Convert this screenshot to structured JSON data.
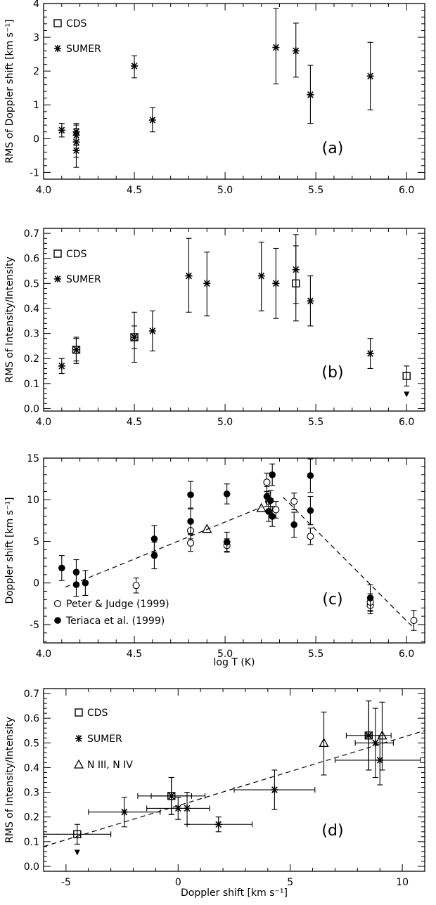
{
  "chart_data": [
    {
      "type": "scatter",
      "panel_label": "(a)",
      "xlabel": "",
      "ylabel": "RMS of Doppler shift [km s⁻¹]",
      "xlim": [
        4.0,
        6.1
      ],
      "ylim": [
        -1.2,
        4.0
      ],
      "xticks": [
        "4.0",
        "4.5",
        "5.0",
        "5.5",
        "6.0"
      ],
      "yticks": [
        "-1",
        "0",
        "1",
        "2",
        "3",
        "4"
      ],
      "legend": [
        "CDS",
        "SUMER"
      ],
      "legend_position": "top-left",
      "series": [
        {
          "name": "SUMER",
          "marker": "asterisk",
          "points": [
            {
              "x": 4.1,
              "y": 0.25,
              "ylo": 0.05,
              "yhi": 0.45
            },
            {
              "x": 4.18,
              "y": 0.2,
              "ylo": -0.05,
              "yhi": 0.45
            },
            {
              "x": 4.18,
              "y": 0.1,
              "ylo": -0.2,
              "yhi": 0.4
            },
            {
              "x": 4.18,
              "y": -0.1,
              "ylo": -0.55,
              "yhi": 0.3
            },
            {
              "x": 4.18,
              "y": -0.35,
              "ylo": -0.85,
              "yhi": 0.15
            },
            {
              "x": 4.5,
              "y": 2.15,
              "ylo": 1.8,
              "yhi": 2.45
            },
            {
              "x": 4.6,
              "y": 0.55,
              "ylo": 0.2,
              "yhi": 0.92
            },
            {
              "x": 5.28,
              "y": 2.7,
              "ylo": 1.62,
              "yhi": 3.85
            },
            {
              "x": 5.39,
              "y": 2.6,
              "ylo": 1.82,
              "yhi": 3.42
            },
            {
              "x": 5.47,
              "y": 1.3,
              "ylo": 0.45,
              "yhi": 2.17
            },
            {
              "x": 5.8,
              "y": 1.85,
              "ylo": 0.85,
              "yhi": 2.85
            }
          ]
        }
      ]
    },
    {
      "type": "scatter",
      "panel_label": "(b)",
      "xlabel": "",
      "ylabel": "RMS of Intensity/Intensity",
      "xlim": [
        4.0,
        6.1
      ],
      "ylim": [
        -0.01,
        0.72
      ],
      "xticks": [
        "4.0",
        "4.5",
        "5.0",
        "5.5",
        "6.0"
      ],
      "yticks": [
        "0.0",
        "0.1",
        "0.2",
        "0.3",
        "0.4",
        "0.5",
        "0.6",
        "0.7"
      ],
      "legend": [
        "CDS",
        "SUMER"
      ],
      "legend_position": "top-left",
      "series": [
        {
          "name": "CDS",
          "marker": "square",
          "points": [
            {
              "x": 4.18,
              "y": 0.235,
              "ylo": 0.19,
              "yhi": 0.28
            },
            {
              "x": 4.5,
              "y": 0.285,
              "ylo": 0.24,
              "yhi": 0.33
            },
            {
              "x": 5.39,
              "y": 0.5,
              "ylo": 0.35,
              "yhi": 0.65
            },
            {
              "x": 6.0,
              "y": 0.13,
              "ylo": 0.09,
              "yhi": 0.17,
              "upper_limit": true
            }
          ]
        },
        {
          "name": "SUMER",
          "marker": "asterisk",
          "points": [
            {
              "x": 4.1,
              "y": 0.17,
              "ylo": 0.14,
              "yhi": 0.2
            },
            {
              "x": 4.18,
              "y": 0.235,
              "ylo": 0.18,
              "yhi": 0.285
            },
            {
              "x": 4.5,
              "y": 0.285,
              "ylo": 0.185,
              "yhi": 0.385
            },
            {
              "x": 4.6,
              "y": 0.31,
              "ylo": 0.23,
              "yhi": 0.39
            },
            {
              "x": 4.8,
              "y": 0.53,
              "ylo": 0.385,
              "yhi": 0.68
            },
            {
              "x": 4.9,
              "y": 0.5,
              "ylo": 0.37,
              "yhi": 0.625
            },
            {
              "x": 5.2,
              "y": 0.53,
              "ylo": 0.39,
              "yhi": 0.665
            },
            {
              "x": 5.28,
              "y": 0.5,
              "ylo": 0.36,
              "yhi": 0.64
            },
            {
              "x": 5.39,
              "y": 0.555,
              "ylo": 0.42,
              "yhi": 0.695
            },
            {
              "x": 5.47,
              "y": 0.43,
              "ylo": 0.33,
              "yhi": 0.53
            },
            {
              "x": 5.8,
              "y": 0.22,
              "ylo": 0.16,
              "yhi": 0.28
            }
          ]
        }
      ]
    },
    {
      "type": "scatter",
      "panel_label": "(c)",
      "xlabel": "log T (K)",
      "ylabel": "Doppler shift [km s⁻¹]",
      "xlim": [
        4.0,
        6.1
      ],
      "ylim": [
        -7.2,
        15.0
      ],
      "xticks": [
        "4.0",
        "4.5",
        "5.0",
        "5.5",
        "6.0"
      ],
      "yticks": [
        "-5",
        "0",
        "5",
        "10",
        "15"
      ],
      "legend": [
        "Peter & Judge (1999)",
        "Teriaca et al. (1999)"
      ],
      "legend_position": "bottom-left",
      "series": [
        {
          "name": "Peter & Judge (1999)",
          "marker": "open-circle",
          "points": [
            {
              "x": 4.51,
              "y": -0.3,
              "ylo": -1.2,
              "yhi": 0.6
            },
            {
              "x": 4.81,
              "y": 4.8,
              "ylo": 3.8,
              "yhi": 5.8
            },
            {
              "x": 4.81,
              "y": 6.3,
              "ylo": 5.3,
              "yhi": 7.3
            },
            {
              "x": 5.01,
              "y": 4.5,
              "ylo": 3.8,
              "yhi": 5.3
            },
            {
              "x": 5.23,
              "y": 12.1,
              "ylo": 11.0,
              "yhi": 13.2
            },
            {
              "x": 5.24,
              "y": 9.8,
              "ylo": 8.8,
              "yhi": 10.8
            },
            {
              "x": 5.28,
              "y": 8.8,
              "ylo": 7.8,
              "yhi": 9.8
            },
            {
              "x": 5.38,
              "y": 9.8,
              "ylo": 8.8,
              "yhi": 10.8
            },
            {
              "x": 5.47,
              "y": 5.6,
              "ylo": 4.6,
              "yhi": 6.6
            },
            {
              "x": 5.8,
              "y": -2.7,
              "ylo": -3.7,
              "yhi": -1.7
            },
            {
              "x": 5.8,
              "y": -2.3,
              "ylo": -3.3,
              "yhi": -1.3
            },
            {
              "x": 6.04,
              "y": -4.5,
              "ylo": -5.7,
              "yhi": -3.3
            }
          ]
        },
        {
          "name": "Teriaca et al. (1999)",
          "marker": "filled-circle",
          "points": [
            {
              "x": 4.1,
              "y": 1.8,
              "ylo": 0.3,
              "yhi": 3.3
            },
            {
              "x": 4.18,
              "y": 1.3,
              "ylo": -0.2,
              "yhi": 2.8
            },
            {
              "x": 4.18,
              "y": -0.2,
              "ylo": -1.6,
              "yhi": 1.2
            },
            {
              "x": 4.23,
              "y": 0.0,
              "ylo": -1.5,
              "yhi": 1.5
            },
            {
              "x": 4.61,
              "y": 5.3,
              "ylo": 3.7,
              "yhi": 6.9
            },
            {
              "x": 4.61,
              "y": 3.3,
              "ylo": 1.7,
              "yhi": 4.9
            },
            {
              "x": 4.81,
              "y": 10.6,
              "ylo": 9.0,
              "yhi": 12.2
            },
            {
              "x": 4.81,
              "y": 7.4,
              "ylo": 5.9,
              "yhi": 8.9
            },
            {
              "x": 5.01,
              "y": 10.7,
              "ylo": 9.5,
              "yhi": 11.9
            },
            {
              "x": 5.01,
              "y": 4.9,
              "ylo": 3.7,
              "yhi": 6.1
            },
            {
              "x": 5.23,
              "y": 10.4,
              "ylo": 9.2,
              "yhi": 11.6
            },
            {
              "x": 5.24,
              "y": 8.6,
              "ylo": 7.4,
              "yhi": 9.8
            },
            {
              "x": 5.25,
              "y": 9.9,
              "ylo": 8.7,
              "yhi": 11.1
            },
            {
              "x": 5.26,
              "y": 13.0,
              "ylo": 11.7,
              "yhi": 14.3
            },
            {
              "x": 5.26,
              "y": 8.0,
              "ylo": 6.8,
              "yhi": 9.2
            },
            {
              "x": 5.38,
              "y": 7.0,
              "ylo": 5.5,
              "yhi": 8.5
            },
            {
              "x": 5.47,
              "y": 12.9,
              "ylo": 10.9,
              "yhi": 14.9
            },
            {
              "x": 5.47,
              "y": 8.7,
              "ylo": 7.0,
              "yhi": 10.4
            },
            {
              "x": 5.8,
              "y": -1.8,
              "ylo": -3.4,
              "yhi": -0.2
            }
          ]
        },
        {
          "name": "",
          "marker": "open-triangle",
          "points": [
            {
              "x": 4.9,
              "y": 6.5
            },
            {
              "x": 5.2,
              "y": 9.0
            }
          ]
        }
      ],
      "fit_lines": [
        {
          "x": [
            4.12,
            5.2
          ],
          "y": [
            -0.5,
            9.1
          ]
        },
        {
          "x": [
            5.32,
            6.03
          ],
          "y": [
            10.3,
            -5.2
          ]
        }
      ]
    },
    {
      "type": "scatter",
      "panel_label": "(d)",
      "xlabel": "Doppler shift [km s⁻¹]",
      "ylabel": "RMS of Intensity/Intensity",
      "xlim": [
        -6.0,
        11.0
      ],
      "ylim": [
        -0.02,
        0.72
      ],
      "xticks": [
        "-5",
        "0",
        "5",
        "10"
      ],
      "yticks": [
        "0.0",
        "0.1",
        "0.2",
        "0.3",
        "0.4",
        "0.5",
        "0.6",
        "0.7"
      ],
      "legend": [
        "CDS",
        "SUMER",
        "N III, N IV"
      ],
      "legend_position": "top-left",
      "series": [
        {
          "name": "CDS",
          "marker": "square",
          "points": [
            {
              "x": -4.5,
              "y": 0.13,
              "xlo": -6.0,
              "xhi": -3.0,
              "ylo": 0.09,
              "yhi": 0.17,
              "upper_limit": true
            },
            {
              "x": -0.3,
              "y": 0.285,
              "xlo": -1.2,
              "xhi": 0.6,
              "ylo": 0.21,
              "yhi": 0.36
            },
            {
              "x": 8.5,
              "y": 0.53,
              "xlo": 8.4,
              "xhi": 8.6,
              "ylo": 0.39,
              "yhi": 0.67
            }
          ]
        },
        {
          "name": "SUMER",
          "marker": "asterisk",
          "points": [
            {
              "x": -2.4,
              "y": 0.22,
              "xlo": -4.0,
              "xhi": -0.8,
              "ylo": 0.16,
              "yhi": 0.28
            },
            {
              "x": -0.3,
              "y": 0.285,
              "xlo": -1.8,
              "xhi": 1.2,
              "ylo": 0.21,
              "yhi": 0.36
            },
            {
              "x": 0.0,
              "y": 0.235,
              "xlo": -1.4,
              "xhi": 1.4,
              "ylo": 0.19,
              "yhi": 0.28
            },
            {
              "x": 0.4,
              "y": 0.235,
              "xlo": 0.4,
              "xhi": 0.4,
              "ylo": 0.17,
              "yhi": 0.3
            },
            {
              "x": 1.8,
              "y": 0.17,
              "xlo": 0.4,
              "xhi": 3.3,
              "ylo": 0.14,
              "yhi": 0.2
            },
            {
              "x": 4.3,
              "y": 0.31,
              "xlo": 2.5,
              "xhi": 6.1,
              "ylo": 0.23,
              "yhi": 0.39
            },
            {
              "x": 8.5,
              "y": 0.53,
              "xlo": 7.5,
              "xhi": 9.5,
              "ylo": 0.39,
              "yhi": 0.67
            },
            {
              "x": 8.8,
              "y": 0.5,
              "xlo": 7.9,
              "xhi": 9.6,
              "ylo": 0.36,
              "yhi": 0.64
            },
            {
              "x": 9.0,
              "y": 0.43,
              "xlo": 7.0,
              "xhi": 10.8,
              "ylo": 0.33,
              "yhi": 0.53
            }
          ]
        },
        {
          "name": "N III, N IV",
          "marker": "open-triangle",
          "points": [
            {
              "x": 6.5,
              "y": 0.5,
              "ylo": 0.37,
              "yhi": 0.625
            },
            {
              "x": 9.1,
              "y": 0.53,
              "ylo": 0.39,
              "yhi": 0.665
            }
          ]
        }
      ],
      "fit_lines": [
        {
          "x": [
            -6.0,
            11.0
          ],
          "y": [
            0.08,
            0.55
          ]
        }
      ]
    }
  ]
}
